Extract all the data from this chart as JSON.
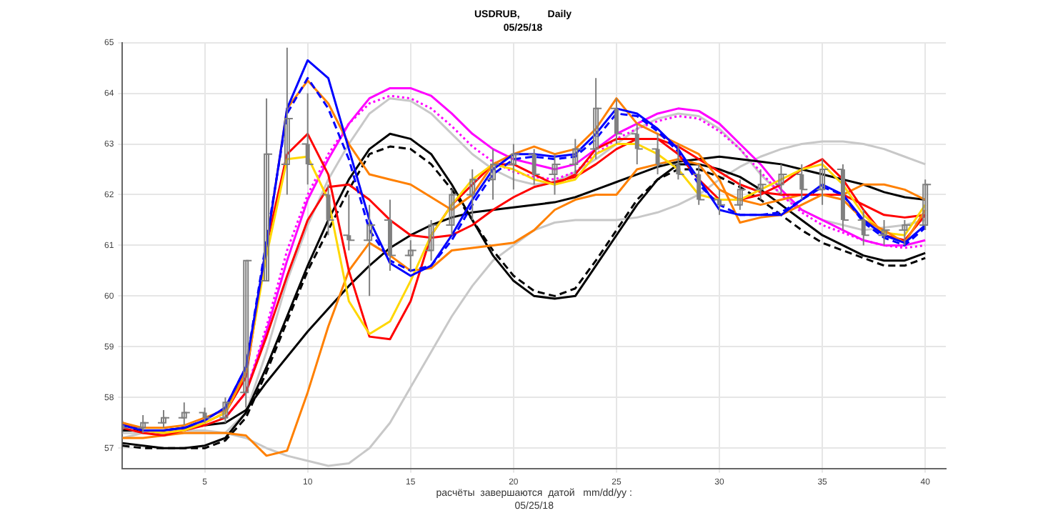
{
  "chart_data": {
    "type": "line",
    "title": "USDRUB,          Daily",
    "subtitle": "05/25/18",
    "annotations": [
      "расчёты  завершаются  датой   mm/dd/yy :",
      "05/25/18"
    ],
    "x": [
      1,
      2,
      3,
      4,
      5,
      6,
      7,
      8,
      9,
      10,
      11,
      12,
      13,
      14,
      15,
      16,
      17,
      18,
      19,
      20,
      21,
      22,
      23,
      24,
      25,
      26,
      27,
      28,
      29,
      30,
      31,
      32,
      33,
      34,
      35,
      36,
      37,
      38,
      39,
      40
    ],
    "xlim": [
      1,
      41
    ],
    "xticks": [
      5,
      10,
      15,
      20,
      25,
      30,
      35,
      40
    ],
    "ylim": [
      56.6,
      65
    ],
    "yticks": [
      57,
      58,
      59,
      60,
      61,
      62,
      63,
      64,
      65
    ],
    "grid": true,
    "legend": false,
    "marker": "none",
    "series": [
      {
        "type": "candlestick",
        "color": "#808080",
        "ohlc": [
          [
            57.45,
            57.55,
            57.3,
            57.4
          ],
          [
            57.4,
            57.65,
            57.3,
            57.5
          ],
          [
            57.5,
            57.75,
            57.4,
            57.6
          ],
          [
            57.6,
            57.9,
            57.45,
            57.7
          ],
          [
            57.7,
            57.8,
            57.5,
            57.6
          ],
          [
            57.6,
            58.0,
            57.5,
            57.9
          ],
          [
            58.1,
            60.7,
            57.8,
            60.7
          ],
          [
            60.3,
            63.9,
            60.3,
            62.8
          ],
          [
            62.6,
            64.9,
            62.0,
            63.5
          ],
          [
            63.0,
            64.0,
            62.2,
            62.6
          ],
          [
            62.0,
            62.2,
            61.2,
            61.5
          ],
          [
            61.2,
            62.0,
            60.9,
            61.1
          ],
          [
            61.1,
            61.8,
            60.0,
            61.4
          ],
          [
            61.5,
            61.9,
            60.5,
            60.8
          ],
          [
            60.8,
            61.1,
            60.5,
            60.9
          ],
          [
            60.9,
            61.5,
            60.7,
            61.4
          ],
          [
            61.4,
            62.1,
            61.2,
            62.0
          ],
          [
            62.0,
            62.5,
            61.5,
            62.3
          ],
          [
            62.3,
            62.9,
            61.9,
            62.6
          ],
          [
            62.6,
            63.0,
            62.1,
            62.8
          ],
          [
            62.8,
            62.9,
            62.2,
            62.4
          ],
          [
            62.4,
            62.8,
            62.0,
            62.6
          ],
          [
            62.6,
            63.1,
            62.4,
            62.9
          ],
          [
            62.9,
            64.3,
            62.7,
            63.7
          ],
          [
            63.7,
            63.9,
            63.0,
            63.2
          ],
          [
            63.2,
            63.4,
            62.6,
            62.9
          ],
          [
            62.9,
            63.2,
            62.4,
            62.6
          ],
          [
            62.6,
            63.0,
            62.3,
            62.4
          ],
          [
            62.4,
            62.6,
            61.8,
            61.9
          ],
          [
            61.9,
            62.1,
            61.6,
            61.8
          ],
          [
            61.8,
            62.3,
            61.7,
            62.1
          ],
          [
            62.1,
            62.5,
            61.9,
            62.2
          ],
          [
            62.2,
            62.6,
            62.0,
            62.4
          ],
          [
            62.4,
            62.6,
            61.9,
            62.1
          ],
          [
            62.1,
            62.7,
            61.8,
            62.5
          ],
          [
            62.5,
            62.6,
            61.3,
            61.5
          ],
          [
            61.5,
            61.7,
            61.0,
            61.2
          ],
          [
            61.2,
            61.5,
            61.0,
            61.3
          ],
          [
            61.3,
            61.5,
            61.0,
            61.4
          ],
          [
            61.4,
            62.3,
            61.3,
            62.2
          ]
        ]
      },
      {
        "color": "#c8c8c8",
        "values": [
          57.2,
          57.3,
          57.3,
          57.35,
          57.35,
          57.3,
          57.2,
          57.0,
          56.85,
          56.75,
          56.65,
          56.7,
          57.0,
          57.5,
          58.2,
          58.9,
          59.6,
          60.2,
          60.7,
          61.0,
          61.3,
          61.45,
          61.5,
          61.5,
          61.5,
          61.55,
          61.65,
          61.8,
          62.0,
          62.3,
          62.55,
          62.75,
          62.9,
          63.0,
          63.05,
          63.05,
          63.0,
          62.9,
          62.75,
          62.6
        ]
      },
      {
        "color": "#c8c8c8",
        "values": [
          57.3,
          57.3,
          57.3,
          57.3,
          57.3,
          57.3,
          57.7,
          58.9,
          60.3,
          61.4,
          62.3,
          63.0,
          63.6,
          63.9,
          63.85,
          63.6,
          63.2,
          62.8,
          62.5,
          62.3,
          62.2,
          62.25,
          62.45,
          62.7,
          63.0,
          63.3,
          63.5,
          63.6,
          63.55,
          63.3,
          62.9,
          62.4,
          62.0,
          61.7,
          61.5,
          61.4,
          61.3,
          61.35,
          61.4,
          61.5
        ]
      },
      {
        "color": "#000000",
        "values": [
          57.1,
          57.05,
          57.0,
          57.0,
          57.05,
          57.2,
          57.7,
          58.6,
          59.6,
          60.6,
          61.5,
          62.3,
          62.9,
          63.2,
          63.1,
          62.8,
          62.2,
          61.5,
          60.8,
          60.3,
          60.0,
          59.95,
          60.0,
          60.6,
          61.2,
          61.8,
          62.3,
          62.6,
          62.6,
          62.5,
          62.35,
          62.1,
          61.8,
          61.5,
          61.2,
          61.0,
          60.8,
          60.7,
          60.7,
          60.85
        ]
      },
      {
        "color": "#000000",
        "line_style": "dashed",
        "values": [
          57.05,
          57.0,
          57.0,
          57.0,
          57.0,
          57.15,
          57.6,
          58.5,
          59.5,
          60.5,
          61.3,
          62.1,
          62.8,
          62.95,
          62.9,
          62.6,
          62.1,
          61.5,
          60.9,
          60.4,
          60.1,
          60.0,
          60.15,
          60.7,
          61.3,
          61.9,
          62.3,
          62.5,
          62.5,
          62.35,
          62.15,
          61.9,
          61.6,
          61.3,
          61.05,
          60.9,
          60.75,
          60.6,
          60.6,
          60.75
        ]
      },
      {
        "color": "#ff00ff",
        "values": [
          null,
          null,
          null,
          null,
          null,
          57.6,
          58.1,
          59.3,
          60.7,
          61.9,
          62.7,
          63.4,
          63.9,
          64.1,
          64.1,
          63.95,
          63.6,
          63.2,
          62.9,
          62.7,
          62.6,
          62.5,
          62.6,
          62.9,
          63.2,
          63.4,
          63.6,
          63.7,
          63.65,
          63.4,
          63.0,
          62.6,
          62.1,
          61.7,
          61.5,
          61.3,
          61.1,
          61.0,
          61.0,
          61.1
        ]
      },
      {
        "color": "#ff00ff",
        "line_style": "dotted",
        "values": [
          null,
          null,
          null,
          null,
          null,
          57.6,
          58.1,
          59.4,
          60.9,
          62.0,
          62.8,
          63.4,
          63.8,
          63.95,
          63.9,
          63.7,
          63.35,
          62.95,
          62.65,
          62.45,
          62.35,
          62.3,
          62.45,
          62.8,
          63.1,
          63.3,
          63.45,
          63.55,
          63.5,
          63.25,
          62.9,
          62.45,
          62.0,
          61.65,
          61.4,
          61.25,
          61.1,
          61.0,
          60.95,
          61.0
        ]
      },
      {
        "color": "#000000",
        "values": [
          57.35,
          57.35,
          57.35,
          57.4,
          57.45,
          57.5,
          57.75,
          58.3,
          58.8,
          59.3,
          59.75,
          60.2,
          60.6,
          60.95,
          61.2,
          61.4,
          61.55,
          61.65,
          61.7,
          61.75,
          61.8,
          61.85,
          61.95,
          62.1,
          62.25,
          62.4,
          62.55,
          62.65,
          62.7,
          62.75,
          62.7,
          62.65,
          62.6,
          62.5,
          62.4,
          62.3,
          62.2,
          62.05,
          61.95,
          61.9
        ]
      },
      {
        "color": "#ff8000",
        "values": [
          57.2,
          57.2,
          57.25,
          57.3,
          57.3,
          57.3,
          57.25,
          56.85,
          56.95,
          58.1,
          59.4,
          60.5,
          61.05,
          60.8,
          60.5,
          60.55,
          60.9,
          60.95,
          61.0,
          61.05,
          61.3,
          61.7,
          61.9,
          62.0,
          62.0,
          62.5,
          62.6,
          62.7,
          62.6,
          62.1,
          61.9,
          61.8,
          61.9,
          62.0,
          62.0,
          62.0,
          62.2,
          62.2,
          62.1,
          61.9
        ]
      },
      {
        "color": "#ff0000",
        "values": [
          57.4,
          57.3,
          57.25,
          57.35,
          57.45,
          57.6,
          58.1,
          59.2,
          60.4,
          61.5,
          62.15,
          62.2,
          61.9,
          61.5,
          61.2,
          61.15,
          61.2,
          61.4,
          61.7,
          61.95,
          62.15,
          62.25,
          62.35,
          62.6,
          62.9,
          63.1,
          63.1,
          62.95,
          62.7,
          62.45,
          62.2,
          62.05,
          62.0,
          62.0,
          62.0,
          62.0,
          61.8,
          61.6,
          61.55,
          61.6
        ]
      },
      {
        "color": "#ff0000",
        "values": [
          57.5,
          57.35,
          57.3,
          57.35,
          57.5,
          57.7,
          58.4,
          61.0,
          62.8,
          63.2,
          62.4,
          60.5,
          59.2,
          59.15,
          59.9,
          61.2,
          61.8,
          62.2,
          62.6,
          62.6,
          62.4,
          62.2,
          62.4,
          62.9,
          63.1,
          63.1,
          63.1,
          62.8,
          62.3,
          61.9,
          61.9,
          62.0,
          62.2,
          62.5,
          62.7,
          62.3,
          61.7,
          61.2,
          61.1,
          61.6
        ]
      },
      {
        "color": "#ffd700",
        "values": [
          57.45,
          57.35,
          57.3,
          57.35,
          57.5,
          57.7,
          58.5,
          60.8,
          62.7,
          62.75,
          61.9,
          59.9,
          59.25,
          59.5,
          60.3,
          61.2,
          61.8,
          62.3,
          62.6,
          62.5,
          62.3,
          62.2,
          62.3,
          62.8,
          63.0,
          63.0,
          62.8,
          62.5,
          62.0,
          61.9,
          61.9,
          62.1,
          62.3,
          62.5,
          62.6,
          62.2,
          61.6,
          61.25,
          61.2,
          61.8
        ]
      },
      {
        "color": "#ff8000",
        "values": [
          57.5,
          57.4,
          57.4,
          57.45,
          57.6,
          57.75,
          58.5,
          61.0,
          63.7,
          64.25,
          63.8,
          63.0,
          62.4,
          62.3,
          62.2,
          61.95,
          61.7,
          62.0,
          62.6,
          62.8,
          62.95,
          62.8,
          62.9,
          63.3,
          63.9,
          63.4,
          63.2,
          63.0,
          62.8,
          62.3,
          61.45,
          61.55,
          61.6,
          61.8,
          62.0,
          61.9,
          61.5,
          61.3,
          61.05,
          61.7
        ]
      },
      {
        "color": "#0000ff",
        "line_style": "dashed",
        "values": [
          57.45,
          57.35,
          57.35,
          57.4,
          57.55,
          57.8,
          58.6,
          61.1,
          63.6,
          64.3,
          63.7,
          62.7,
          61.3,
          60.7,
          60.5,
          60.6,
          61.1,
          61.8,
          62.4,
          62.7,
          62.75,
          62.7,
          62.75,
          63.1,
          63.6,
          63.55,
          63.25,
          62.85,
          62.2,
          61.8,
          61.6,
          61.6,
          61.65,
          61.9,
          62.15,
          62.0,
          61.45,
          61.15,
          61.0,
          61.35
        ]
      },
      {
        "color": "#0000ff",
        "values": [
          57.45,
          57.35,
          57.35,
          57.4,
          57.55,
          57.8,
          58.6,
          61.0,
          63.7,
          64.65,
          64.3,
          62.9,
          61.5,
          60.65,
          60.4,
          60.6,
          61.2,
          61.9,
          62.5,
          62.8,
          62.8,
          62.75,
          62.8,
          63.2,
          63.7,
          63.6,
          63.3,
          62.9,
          62.3,
          61.7,
          61.6,
          61.6,
          61.6,
          61.9,
          62.2,
          62.0,
          61.5,
          61.2,
          61.05,
          61.4
        ]
      }
    ]
  }
}
